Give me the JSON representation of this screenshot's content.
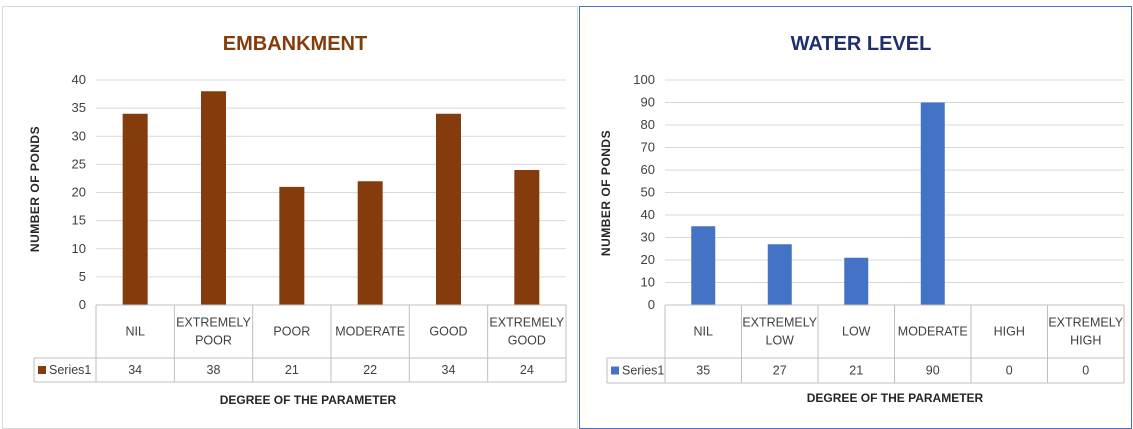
{
  "chart_data": [
    {
      "type": "bar",
      "title": "EMBANKMENT",
      "ylabel": "NUMBER OF PONDS",
      "xlabel": "DEGREE OF THE PARAMETER",
      "categories": [
        [
          "NIL"
        ],
        [
          "EXTREMELY",
          "POOR"
        ],
        [
          "POOR"
        ],
        [
          "MODERATE"
        ],
        [
          "GOOD"
        ],
        [
          "EXTREMELY",
          "GOOD"
        ]
      ],
      "series": [
        {
          "name": "Series1",
          "values": [
            34,
            38,
            21,
            22,
            34,
            24
          ]
        }
      ],
      "ylim": [
        0,
        40
      ],
      "ytick_step": 5,
      "grid": true,
      "data_table": true,
      "colors": {
        "title": "#843c0c",
        "bar": "#843c0c"
      }
    },
    {
      "type": "bar",
      "title": "WATER LEVEL",
      "ylabel": "NUMBER OF PONDS",
      "xlabel": "DEGREE OF THE PARAMETER",
      "categories": [
        [
          "NIL"
        ],
        [
          "EXTREMELY",
          "LOW"
        ],
        [
          "LOW"
        ],
        [
          "MODERATE"
        ],
        [
          "HIGH"
        ],
        [
          "EXTREMELY",
          "HIGH"
        ]
      ],
      "series": [
        {
          "name": "Series1",
          "values": [
            35,
            27,
            21,
            90,
            0,
            0
          ]
        }
      ],
      "ylim": [
        0,
        100
      ],
      "ytick_step": 10,
      "grid": true,
      "data_table": true,
      "colors": {
        "title": "#1f2f6e",
        "bar": "#4472c4"
      }
    }
  ]
}
